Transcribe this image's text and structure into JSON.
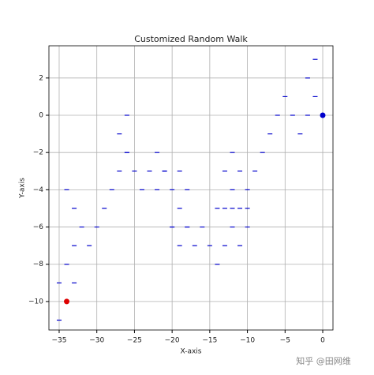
{
  "chart_data": {
    "type": "scatter",
    "title": "Customized Random Walk",
    "x_label": "X-axis",
    "y_label": "Y-axis",
    "series": [
      {
        "color": "#0000cc",
        "marker": "_",
        "x": [
          -1,
          -2,
          -1,
          -5,
          -2,
          -4,
          -6,
          -3,
          -7,
          -8,
          -9,
          -10,
          -11,
          -12,
          -13,
          -12,
          -11,
          -12,
          -13,
          -14,
          -10,
          -12,
          -11,
          -13,
          -14,
          -15,
          -16,
          -17,
          -18,
          -19,
          -19,
          -20,
          -18,
          -19,
          -20,
          -21,
          -22,
          -23,
          -24,
          -25,
          -26,
          -27,
          -26,
          -27,
          -28,
          -29,
          -30,
          -31,
          -32,
          -33,
          -34,
          -33,
          -34,
          -33,
          -35,
          -35,
          -22,
          -20,
          -21,
          -18,
          -10,
          -26
        ],
        "y": [
          3,
          2,
          1,
          1,
          0,
          0,
          0,
          -1,
          -1,
          -2,
          -3,
          -4,
          -3,
          -2,
          -3,
          -4,
          -5,
          -5,
          -5,
          -5,
          -6,
          -6,
          -7,
          -7,
          -8,
          -7,
          -6,
          -7,
          -6,
          -5,
          -7,
          -6,
          -4,
          -3,
          -4,
          -3,
          -4,
          -3,
          -4,
          -3,
          -2,
          -1,
          0,
          -3,
          -4,
          -5,
          -6,
          -7,
          -6,
          -5,
          -4,
          -7,
          -8,
          -9,
          -9,
          -11,
          -2,
          -6,
          -3,
          -6,
          -5,
          -2
        ]
      },
      {
        "color": "#0000cc",
        "marker": "o",
        "x": [
          0
        ],
        "y": [
          0
        ]
      },
      {
        "color": "#dd0000",
        "marker": "o",
        "x": [
          -34
        ],
        "y": [
          -10
        ]
      }
    ],
    "xlim": [
      -36.36,
      1.36
    ],
    "ylim": [
      -11.53,
      3.73
    ],
    "xticks": [
      {
        "value": -35,
        "label": "−35"
      },
      {
        "value": -30,
        "label": "−30"
      },
      {
        "value": -25,
        "label": "−25"
      },
      {
        "value": -20,
        "label": "−20"
      },
      {
        "value": -15,
        "label": "−15"
      },
      {
        "value": -10,
        "label": "−10"
      },
      {
        "value": -5,
        "label": "−5"
      },
      0
    ],
    "yticks": [
      {
        "value": -10,
        "label": "−10"
      },
      {
        "value": -8,
        "label": "−8"
      },
      {
        "value": -6,
        "label": "−6"
      },
      {
        "value": -4,
        "label": "−4"
      },
      {
        "value": -2,
        "label": "−2"
      },
      0,
      2
    ],
    "grid": true,
    "watermark": "知乎 @田网维"
  }
}
